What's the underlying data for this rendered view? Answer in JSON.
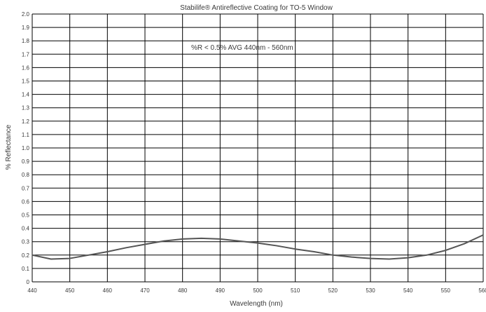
{
  "chart_data": {
    "type": "line",
    "title": "Stabilife® Antireflective Coating for TO-5 Window",
    "xlabel": "Wavelength (nm)",
    "ylabel": "% Reflectance",
    "xlim": [
      440,
      560
    ],
    "ylim": [
      0,
      2.0
    ],
    "x_ticks": [
      "440",
      "450",
      "460",
      "470",
      "480",
      "490",
      "500",
      "510",
      "520",
      "530",
      "540",
      "550",
      "560"
    ],
    "y_ticks": [
      "0",
      "0.1",
      "0.2",
      "0.3",
      "0.4",
      "0.5",
      "0.6",
      "0.7",
      "0.8",
      "0.9",
      "1.0",
      "1.1",
      "1.2",
      "1.3",
      "1.4",
      "1.5",
      "1.6",
      "1.7",
      "1.8",
      "1.9",
      "2.0"
    ],
    "grid": true,
    "annotation": "%R < 0.5% AVG 440nm - 560nm",
    "series": [
      {
        "x": [
          440,
          445,
          450,
          455,
          460,
          465,
          470,
          475,
          480,
          485,
          490,
          495,
          500,
          505,
          510,
          515,
          520,
          525,
          530,
          535,
          540,
          545,
          550,
          555,
          560
        ],
        "values": [
          0.2,
          0.17,
          0.175,
          0.2,
          0.225,
          0.255,
          0.28,
          0.305,
          0.32,
          0.325,
          0.32,
          0.305,
          0.29,
          0.27,
          0.245,
          0.225,
          0.2,
          0.185,
          0.175,
          0.17,
          0.18,
          0.2,
          0.235,
          0.285,
          0.35
        ],
        "color": "#555555"
      }
    ]
  }
}
